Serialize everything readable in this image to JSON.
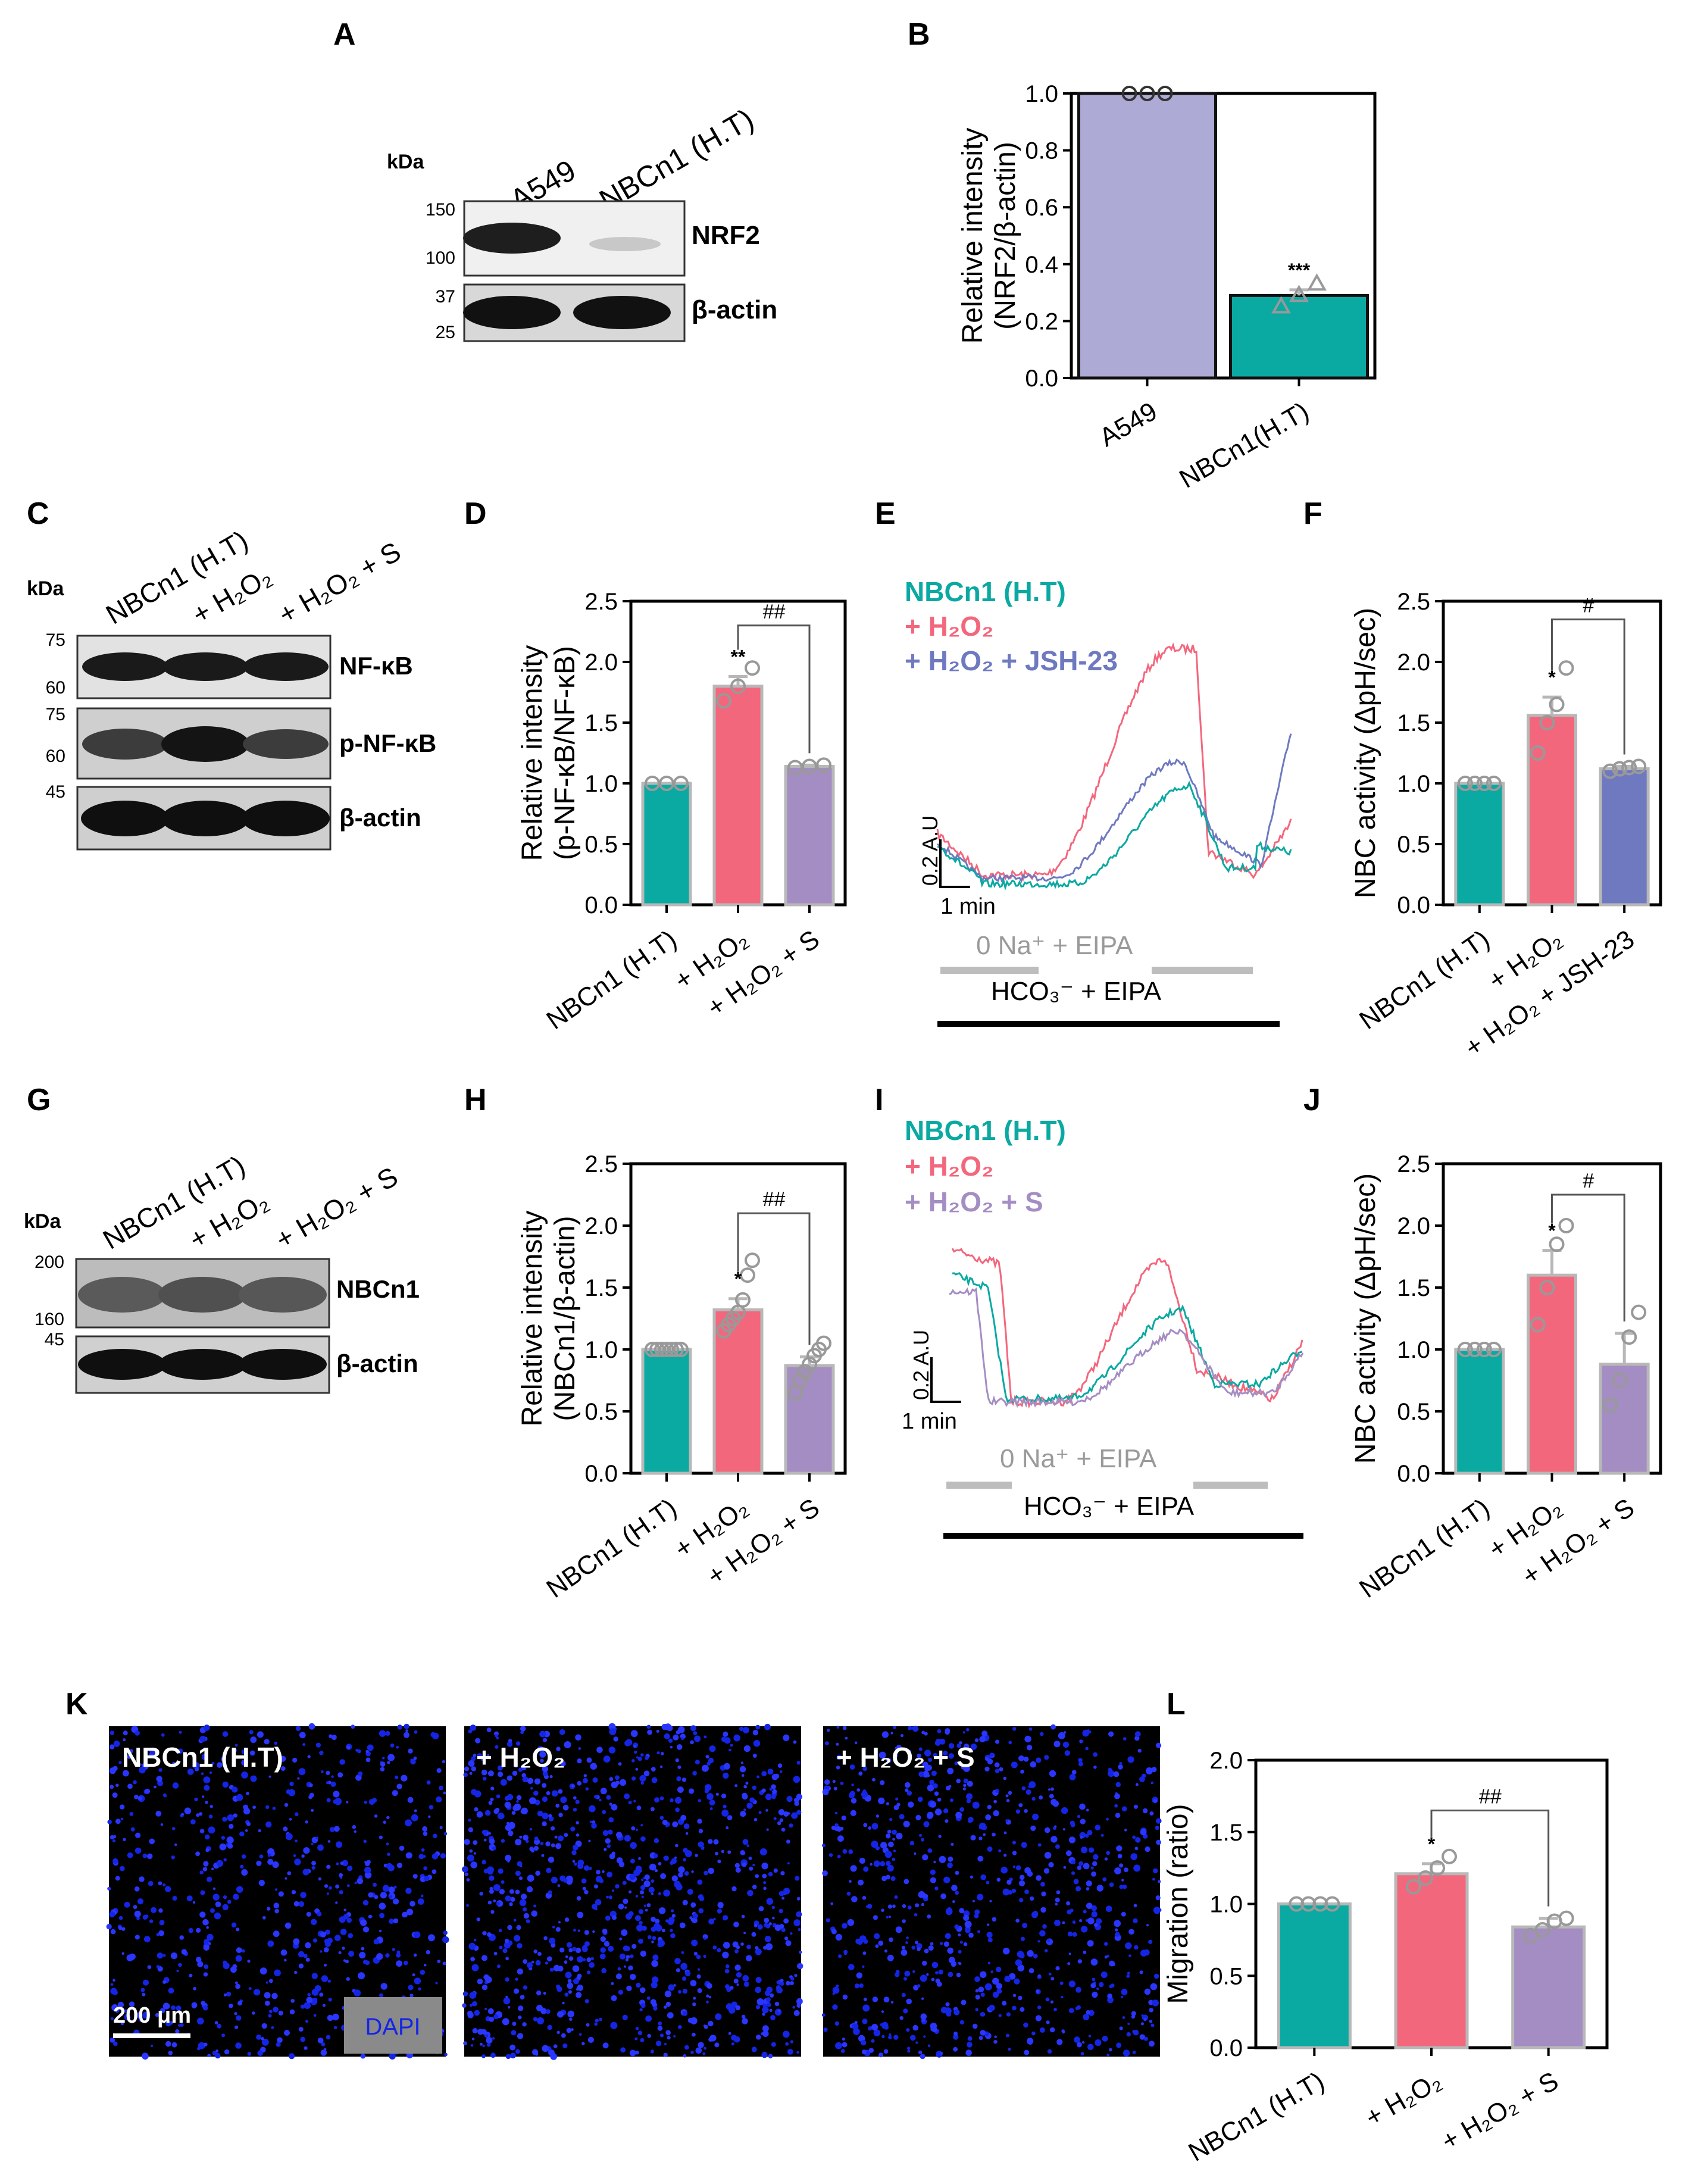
{
  "colors": {
    "teal": "#0aa9a2",
    "pink": "#f3677d",
    "purple": "#a48dc3",
    "lavender": "#aeaad6",
    "blue_purple": "#6e79c0",
    "grey_bar": "#b8b8b8",
    "dapi_blue": "#1525e6",
    "dapi_label_bg": "#8a8a8a"
  },
  "panel_letters": [
    "A",
    "B",
    "C",
    "D",
    "E",
    "F",
    "G",
    "H",
    "I",
    "J",
    "K",
    "L"
  ],
  "blots": {
    "A": {
      "kda": "kDa",
      "lanes": [
        "A549",
        "NBCn1 (H.T)"
      ],
      "markers": [
        "150",
        "100",
        "37",
        "25"
      ],
      "bands": [
        "NRF2",
        "β-actin"
      ]
    },
    "C": {
      "kda": "kDa",
      "lanes": [
        "NBCn1 (H.T)",
        "+ H₂O₂",
        "+ H₂O₂ + S"
      ],
      "markers": [
        "75",
        "60",
        "75",
        "60",
        "45"
      ],
      "bands": [
        "NF-κB",
        "p-NF-κB",
        "β-actin"
      ]
    },
    "G": {
      "kda": "kDa",
      "lanes": [
        "NBCn1 (H.T)",
        "+ H₂O₂",
        "+ H₂O₂ + S"
      ],
      "markers": [
        "200",
        "160",
        "45"
      ],
      "bands": [
        "NBCn1",
        "β-actin"
      ]
    }
  },
  "traces": {
    "E": {
      "legend": [
        "NBCn1 (H.T)",
        "+ H₂O₂",
        "+ H₂O₂ + JSH-23"
      ],
      "scale_y": "0.2 A.U",
      "scale_x": "1 min",
      "bar1": "0 Na⁺ + EIPA",
      "bar2": "HCO₃⁻ + EIPA"
    },
    "I": {
      "legend": [
        "NBCn1 (H.T)",
        "+ H₂O₂",
        "+ H₂O₂ + S"
      ],
      "scale_y": "0.2 A.U",
      "scale_x": "1 min",
      "bar1": "0 Na⁺ + EIPA",
      "bar2": "HCO₃⁻ + EIPA"
    }
  },
  "micrographs": {
    "labels": [
      "NBCn1 (H.T)",
      "+ H₂O₂",
      "+ H₂O₂ + S"
    ],
    "scale_bar": "200 μm",
    "stain": "DAPI"
  },
  "chart_data": [
    {
      "panel": "B",
      "type": "bar",
      "categories": [
        "A549",
        "NBCn1(H.T)"
      ],
      "values": [
        1.0,
        0.29
      ],
      "errors": [
        0.0,
        0.02
      ],
      "points": [
        [
          1.0,
          1.0,
          1.0
        ],
        [
          0.25,
          0.29,
          0.33
        ]
      ],
      "ylabel": "Relative intensity",
      "ylabel2": "(NRF2/β-actin)",
      "ylim": [
        0,
        1.0
      ],
      "ystep": 0.2,
      "yticks": [
        "0.0",
        "0.2",
        "0.4",
        "0.6",
        "0.8",
        "1.0"
      ],
      "sig": [
        "",
        "***"
      ],
      "bracket": null
    },
    {
      "panel": "D",
      "type": "bar",
      "categories": [
        "NBCn1 (H.T)",
        "+ H₂O₂",
        "+ H₂O₂ + S"
      ],
      "values": [
        1.0,
        1.8,
        1.14
      ],
      "errors": [
        0.0,
        0.08,
        0.01
      ],
      "points": [
        [
          1.0,
          1.0,
          1.0
        ],
        [
          1.68,
          1.8,
          1.95
        ],
        [
          1.13,
          1.14,
          1.15
        ]
      ],
      "ylabel": "Relative intensity",
      "ylabel2": "(p-NF-κB/NF-κB)",
      "ylim": [
        0,
        2.5
      ],
      "ystep": 0.5,
      "yticks": [
        "0.0",
        "0.5",
        "1.0",
        "1.5",
        "2.0",
        "2.5"
      ],
      "sig": [
        "",
        "**",
        ""
      ],
      "bracket": {
        "from": 1,
        "to": 2,
        "label": "##",
        "level": 2.3
      }
    },
    {
      "panel": "F",
      "type": "bar",
      "categories": [
        "NBCn1 (H.T)",
        "+ H₂O₂",
        "+ H₂O₂ + JSH-23"
      ],
      "values": [
        1.0,
        1.56,
        1.12
      ],
      "errors": [
        0.0,
        0.15,
        0.02
      ],
      "points": [
        [
          1.0,
          1.0,
          1.0,
          1.0
        ],
        [
          1.25,
          1.5,
          1.65,
          1.95
        ],
        [
          1.1,
          1.12,
          1.13,
          1.14
        ]
      ],
      "ylabel": "NBC activity (ΔpH/sec)",
      "ylabel2": "",
      "ylim": [
        0,
        2.5
      ],
      "ystep": 0.5,
      "yticks": [
        "0.0",
        "0.5",
        "1.0",
        "1.5",
        "2.0",
        "2.5"
      ],
      "sig": [
        "",
        "*",
        ""
      ],
      "bracket": {
        "from": 1,
        "to": 2,
        "label": "#",
        "level": 2.35
      }
    },
    {
      "panel": "H",
      "type": "bar",
      "categories": [
        "NBCn1 (H.T)",
        "+ H₂O₂",
        "+ H₂O₂ + S"
      ],
      "values": [
        1.0,
        1.32,
        0.87
      ],
      "errors": [
        0.0,
        0.09,
        0.07
      ],
      "points": [
        [
          1.0,
          1.0,
          1.0,
          1.0,
          1.0,
          1.0,
          1.0
        ],
        [
          1.15,
          1.2,
          1.25,
          1.3,
          1.4,
          1.6,
          1.72
        ],
        [
          0.65,
          0.75,
          0.82,
          0.88,
          0.95,
          1.0,
          1.05
        ]
      ],
      "ylabel": "Relative intensity",
      "ylabel2": "(NBCn1/β-actin)",
      "ylim": [
        0,
        2.5
      ],
      "ystep": 0.5,
      "yticks": [
        "0.0",
        "0.5",
        "1.0",
        "1.5",
        "2.0",
        "2.5"
      ],
      "sig": [
        "",
        "*",
        ""
      ],
      "bracket": {
        "from": 1,
        "to": 2,
        "label": "##",
        "level": 2.1
      }
    },
    {
      "panel": "J",
      "type": "bar",
      "categories": [
        "NBCn1 (H.T)",
        "+ H₂O₂",
        "+ H₂O₂ + S"
      ],
      "values": [
        1.0,
        1.6,
        0.88
      ],
      "errors": [
        0.0,
        0.2,
        0.25
      ],
      "points": [
        [
          1.0,
          1.0,
          1.0,
          1.0
        ],
        [
          1.2,
          1.5,
          1.85,
          2.0
        ],
        [
          0.55,
          0.75,
          1.1,
          1.3
        ]
      ],
      "ylabel": "NBC activity (ΔpH/sec)",
      "ylabel2": "",
      "ylim": [
        0,
        2.5
      ],
      "ystep": 0.5,
      "yticks": [
        "0.0",
        "0.5",
        "1.0",
        "1.5",
        "2.0",
        "2.5"
      ],
      "sig": [
        "",
        "*",
        ""
      ],
      "bracket": {
        "from": 1,
        "to": 2,
        "label": "#",
        "level": 2.25
      }
    },
    {
      "panel": "L",
      "type": "bar",
      "categories": [
        "NBCn1 (H.T)",
        "+ H₂O₂",
        "+ H₂O₂ + S"
      ],
      "values": [
        1.0,
        1.21,
        0.84
      ],
      "errors": [
        0.0,
        0.07,
        0.06
      ],
      "points": [
        [
          1.0,
          1.0,
          1.0,
          1.0
        ],
        [
          1.12,
          1.18,
          1.25,
          1.33
        ],
        [
          0.78,
          0.82,
          0.88,
          0.9
        ]
      ],
      "ylabel": "Migration (ratio)",
      "ylabel2": "",
      "ylim": [
        0,
        2.0
      ],
      "ystep": 0.5,
      "yticks": [
        "0.0",
        "0.5",
        "1.0",
        "1.5",
        "2.0"
      ],
      "sig": [
        "",
        "*",
        ""
      ],
      "bracket": {
        "from": 1,
        "to": 2,
        "label": "##",
        "level": 1.65
      }
    }
  ]
}
